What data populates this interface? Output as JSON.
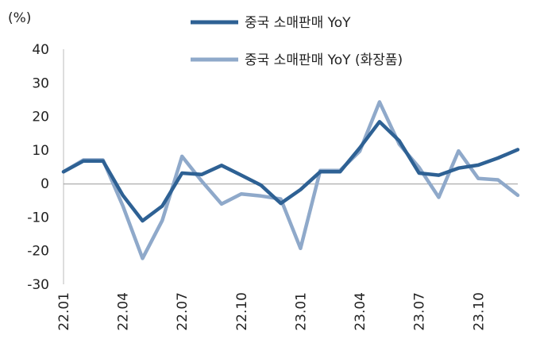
{
  "chart_data": {
    "type": "line",
    "title": "",
    "xlabel": "",
    "ylabel": "(%)",
    "ylim": [
      -30,
      40
    ],
    "yticks": [
      40,
      30,
      20,
      10,
      0,
      -10,
      -20,
      -30
    ],
    "x": [
      "22.01",
      "22.02",
      "22.03",
      "22.04",
      "22.05",
      "22.06",
      "22.07",
      "22.08",
      "22.09",
      "22.10",
      "22.11",
      "22.12",
      "23.01",
      "23.02",
      "23.03",
      "23.04",
      "23.05",
      "23.06",
      "23.07",
      "23.08",
      "23.09",
      "23.10",
      "23.11",
      "23.12"
    ],
    "x_tick_labels": [
      "22.01",
      "22.04",
      "22.07",
      "22.10",
      "23.01",
      "23.04",
      "23.07",
      "23.10"
    ],
    "grid": false,
    "legend_position": "top-center",
    "series": [
      {
        "name": "중국 소매판매 YoY",
        "color": "#2e6194",
        "values": [
          3.5,
          6.7,
          6.7,
          -3.5,
          -11.1,
          -6.7,
          3.1,
          2.7,
          5.4,
          2.5,
          -0.5,
          -5.9,
          -1.8,
          3.5,
          3.5,
          10.6,
          18.4,
          12.7,
          3.1,
          2.5,
          4.6,
          5.5,
          7.6,
          10.1
        ]
      },
      {
        "name": "중국 소매판매 YoY (화장품)",
        "color": "#8fa9ca",
        "values": [
          3.5,
          7.0,
          7.0,
          -6.6,
          -22.3,
          -11.0,
          8.1,
          0.7,
          -6.1,
          -3.1,
          -3.7,
          -4.6,
          -19.3,
          3.9,
          3.9,
          9.6,
          24.3,
          11.7,
          4.8,
          -4.1,
          9.7,
          1.5,
          1.1,
          -3.5
        ]
      }
    ]
  }
}
